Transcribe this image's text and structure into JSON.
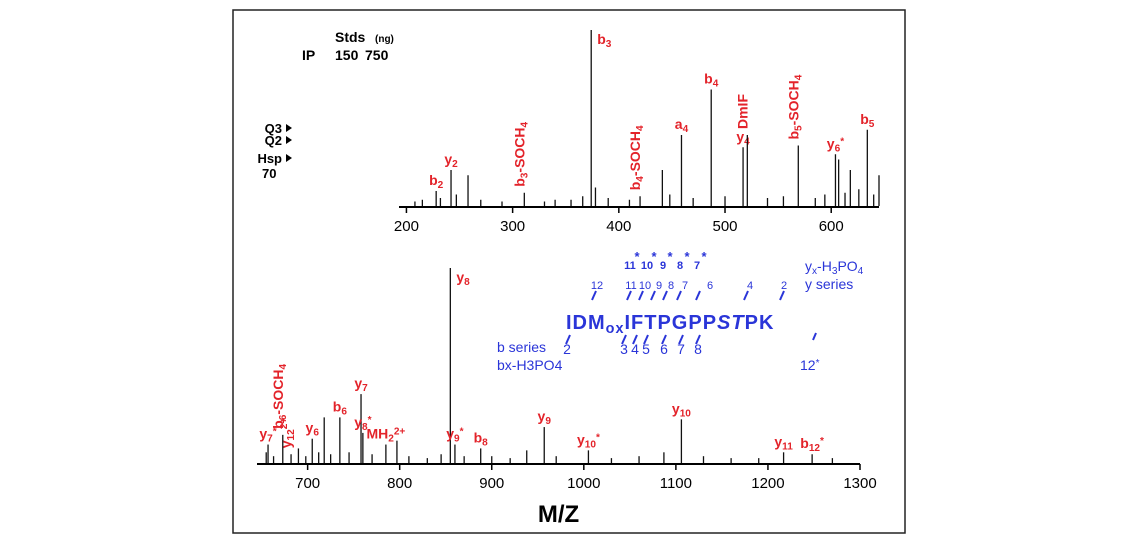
{
  "chart_data": [
    {
      "type": "spectrum",
      "xlim": [
        193,
        645
      ],
      "xticks": [
        200,
        300,
        400,
        500,
        600
      ],
      "ylim": [
        0,
        100
      ],
      "color": "#111111",
      "label_color": "#e3232a",
      "x": [
        208,
        215,
        228,
        232,
        242,
        247,
        258,
        270,
        290,
        311,
        330,
        340,
        355,
        366,
        374,
        378,
        390,
        410,
        420,
        441,
        448,
        459,
        470,
        487,
        500,
        517,
        521,
        540,
        555,
        569,
        585,
        594,
        604,
        607,
        613,
        618,
        626,
        634,
        640,
        645
      ],
      "values": [
        2,
        3,
        8,
        4,
        20,
        6,
        17,
        3,
        2,
        7,
        2,
        3,
        3,
        5,
        100,
        10,
        4,
        3,
        5,
        20,
        6,
        40,
        4,
        66,
        5,
        33,
        40,
        4,
        5,
        34,
        4,
        6,
        29,
        26,
        7,
        20,
        9,
        43,
        6,
        17
      ],
      "labels": [
        null,
        null,
        [
          "b",
          {
            "sub": "2"
          }
        ],
        null,
        [
          "y",
          {
            "sub": "2"
          }
        ],
        null,
        null,
        null,
        null,
        [
          "b",
          {
            "sub": "3"
          },
          "-SOCH",
          {
            "sub": "4"
          }
        ],
        null,
        null,
        null,
        null,
        [
          "b",
          {
            "sub": "3"
          }
        ],
        null,
        null,
        null,
        [
          "b",
          {
            "sub": "4"
          },
          "-SOCH",
          {
            "sub": "4"
          }
        ],
        null,
        null,
        [
          "a",
          {
            "sub": "4"
          }
        ],
        null,
        [
          "b",
          {
            "sub": "4"
          }
        ],
        null,
        [
          "y",
          {
            "sub": "4"
          }
        ],
        [
          "DmIF"
        ],
        null,
        null,
        [
          "b",
          {
            "sub": "5"
          },
          "-SOCH",
          {
            "sub": "4"
          }
        ],
        null,
        null,
        [
          "y",
          {
            "sub": "6"
          },
          {
            "sup": "*"
          }
        ],
        null,
        null,
        null,
        null,
        [
          "b",
          {
            "sub": "5"
          }
        ],
        null,
        null
      ]
    },
    {
      "type": "spectrum",
      "xlabel": "M/Z",
      "xlim": [
        645,
        1300
      ],
      "xticks": [
        700,
        800,
        900,
        1000,
        1100,
        1200,
        1300
      ],
      "ylim": [
        0,
        100
      ],
      "color": "#111111",
      "label_color": "#e3232a",
      "x": [
        655,
        657,
        663,
        673,
        682,
        690,
        698,
        705,
        712,
        718,
        725,
        735,
        745,
        758,
        760,
        770,
        785,
        797,
        810,
        830,
        845,
        855,
        860,
        870,
        888,
        900,
        920,
        938,
        957,
        970,
        1005,
        1030,
        1060,
        1087,
        1106,
        1130,
        1160,
        1190,
        1217,
        1248,
        1270
      ],
      "values": [
        5,
        9,
        3,
        14,
        4,
        7,
        3,
        12,
        5,
        23,
        4,
        23,
        5,
        35,
        15,
        4,
        9,
        11,
        3,
        2,
        4,
        100,
        9,
        3,
        7,
        3,
        2,
        6,
        18,
        3,
        6,
        2,
        3,
        5,
        22,
        3,
        2,
        2,
        5,
        4,
        2
      ],
      "labels": [
        null,
        [
          "y",
          {
            "sub": "7"
          },
          {
            "sup": "*"
          }
        ],
        null,
        [
          "b",
          {
            "sub": "6"
          },
          "-SOCH",
          {
            "sub": "4"
          }
        ],
        [
          "y",
          {
            "sub": "12"
          },
          {
            "sup": "2+"
          }
        ],
        null,
        null,
        [
          "y",
          {
            "sub": "6"
          }
        ],
        null,
        null,
        null,
        [
          "b",
          {
            "sub": "6"
          }
        ],
        null,
        [
          "y",
          {
            "sub": "7"
          }
        ],
        [
          "y",
          {
            "sub": "8"
          },
          {
            "sup": "*"
          }
        ],
        null,
        [
          "MH",
          {
            "sub": "2"
          },
          {
            "sup": "2+"
          }
        ],
        null,
        null,
        null,
        null,
        [
          "y",
          {
            "sub": "8"
          }
        ],
        [
          "y",
          {
            "sub": "9"
          },
          {
            "sup": "*"
          }
        ],
        null,
        [
          "b",
          {
            "sub": "8"
          }
        ],
        null,
        null,
        null,
        [
          "y",
          {
            "sub": "9"
          }
        ],
        null,
        [
          "y",
          {
            "sub": "10"
          },
          {
            "sup": "*"
          }
        ],
        null,
        null,
        null,
        [
          "y",
          {
            "sub": "10"
          }
        ],
        null,
        null,
        null,
        [
          "y",
          {
            "sub": "11"
          }
        ],
        [
          "b",
          {
            "sub": "12"
          },
          {
            "sup": "*"
          }
        ],
        null
      ]
    }
  ],
  "inset": {
    "stds": "Stds",
    "unit": "(ng)",
    "ip": "IP",
    "amounts": [
      "150",
      "750"
    ],
    "lanes": [
      "Q3",
      "Q2",
      "Hsp"
    ],
    "lane_sub": "70"
  },
  "sequence": {
    "peptide": [
      "IDM",
      {
        "sub": "ox"
      },
      "IFTPGPP",
      {
        "italic": "ST"
      },
      "PK"
    ],
    "y_numbers": [
      "12",
      "11",
      "10",
      "9",
      "8",
      "7",
      "6",
      "4",
      "2"
    ],
    "y_series": "y series",
    "y_phospho": [
      "y",
      {
        "sub": "x"
      },
      "-H",
      {
        "sub": "3"
      },
      "PO",
      {
        "sub": "4"
      }
    ],
    "y_phospho_numbers": [
      "11",
      "10",
      "9",
      "8",
      "7"
    ],
    "star": "*",
    "b_series": "b series",
    "b_numbers": [
      "2",
      "3",
      "4",
      "5",
      "6",
      "7",
      "8"
    ],
    "b_phospho": "bx-H3PO4",
    "b_phospho_number": [
      "12",
      {
        "sup": "*"
      }
    ]
  }
}
